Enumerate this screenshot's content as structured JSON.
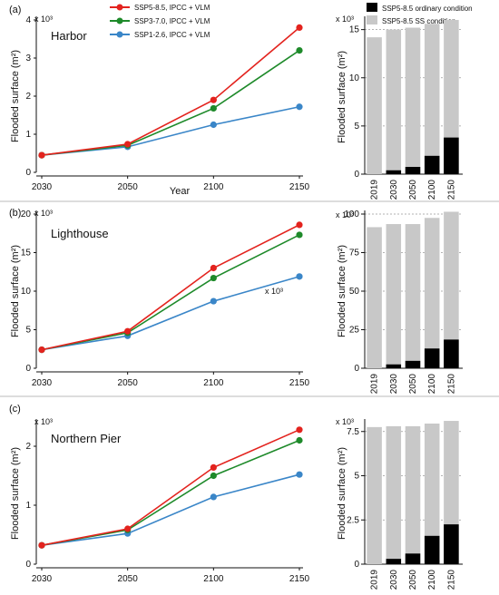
{
  "legend": {
    "lines": [
      {
        "label": "SSP5-8.5, IPCC + VLM",
        "color": "#e3231e"
      },
      {
        "label": "SSP3-7.0, IPCC + VLM",
        "color": "#1e8a2a"
      },
      {
        "label": "SSP1-2.6, IPCC + VLM",
        "color": "#3a86c8"
      }
    ],
    "bars": [
      {
        "label": "SSP5-8.5 ordinary condition",
        "color": "#000000"
      },
      {
        "label": "SSP5-8.5 SS condition",
        "color": "#c8c8c8"
      }
    ]
  },
  "chart_data": [
    {
      "type": "line",
      "panel": "(a)",
      "site": "Harbor",
      "multiplier": "x 10³",
      "xlabel": "Year",
      "ylabel": "Flooded surface (m²)",
      "categories": [
        "2030",
        "2050",
        "2100",
        "2150"
      ],
      "ylim": [
        0,
        4
      ],
      "yticks": [
        "0",
        "1",
        "2",
        "3",
        "4"
      ],
      "series": [
        {
          "name": "SSP5-8.5, IPCC + VLM",
          "values": [
            0.45,
            0.74,
            1.9,
            3.8
          ]
        },
        {
          "name": "SSP3-7.0, IPCC + VLM",
          "values": [
            0.45,
            0.71,
            1.68,
            3.2
          ]
        },
        {
          "name": "SSP1-2.6, IPCC + VLM",
          "values": [
            0.45,
            0.67,
            1.25,
            1.72
          ]
        }
      ]
    },
    {
      "type": "bar",
      "panel": "(a)",
      "multiplier": "x 10³",
      "ylabel": "Flooded surface (m²)",
      "categories": [
        "2019",
        "2030",
        "2050",
        "2100",
        "2150"
      ],
      "ylim": [
        0,
        16
      ],
      "yticks": [
        "0",
        "5",
        "10",
        "15"
      ],
      "series": [
        {
          "name": "SSP5-8.5 SS condition",
          "values": [
            14.2,
            15.0,
            15.2,
            15.6,
            16.0
          ]
        },
        {
          "name": "SSP5-8.5 ordinary condition",
          "values": [
            0,
            0.4,
            0.75,
            1.9,
            3.8
          ]
        }
      ]
    },
    {
      "type": "line",
      "panel": "(b)",
      "site": "Lighthouse",
      "multiplier": "x 10³",
      "xlabel": "",
      "ylabel": "Flooded surface (m²)",
      "categories": [
        "2030",
        "2050",
        "2100",
        "2150"
      ],
      "ylim": [
        0,
        20
      ],
      "yticks": [
        "0",
        "5",
        "10",
        "15",
        "20"
      ],
      "series": [
        {
          "name": "SSP5-8.5, IPCC + VLM",
          "values": [
            2.4,
            4.8,
            13.0,
            18.6
          ]
        },
        {
          "name": "SSP3-7.0, IPCC + VLM",
          "values": [
            2.4,
            4.6,
            11.7,
            17.3
          ]
        },
        {
          "name": "SSP1-2.6, IPCC + VLM",
          "values": [
            2.4,
            4.2,
            8.7,
            11.9
          ]
        }
      ]
    },
    {
      "type": "bar",
      "panel": "(b)",
      "multiplier": "x 10³",
      "ylabel": "Flooded surface (m²)",
      "categories": [
        "2019",
        "2030",
        "2050",
        "2100",
        "2150"
      ],
      "ylim": [
        0,
        100
      ],
      "yticks": [
        "0",
        "25",
        "50",
        "75",
        "100"
      ],
      "series": [
        {
          "name": "SSP5-8.5 SS condition",
          "values": [
            91.5,
            93.5,
            93.5,
            97.5,
            101.5
          ]
        },
        {
          "name": "SSP5-8.5 ordinary condition",
          "values": [
            0,
            2.5,
            4.8,
            12.8,
            18.6
          ]
        }
      ]
    },
    {
      "type": "line",
      "panel": "(c)",
      "site": "Northern Pier",
      "multiplier": "x 10³",
      "xlabel": "",
      "ylabel": "Flooded surface (m²)",
      "categories": [
        "2030",
        "2050",
        "2100",
        "2150"
      ],
      "ylim": [
        0,
        2.4
      ],
      "yticks": [
        "0",
        "1",
        "2"
      ],
      "series": [
        {
          "name": "SSP5-8.5, IPCC + VLM",
          "values": [
            0.32,
            0.6,
            1.64,
            2.28
          ]
        },
        {
          "name": "SSP3-7.0, IPCC + VLM",
          "values": [
            0.32,
            0.58,
            1.5,
            2.1
          ]
        },
        {
          "name": "SSP1-2.6, IPCC + VLM",
          "values": [
            0.32,
            0.52,
            1.14,
            1.52
          ]
        }
      ]
    },
    {
      "type": "bar",
      "panel": "(c)",
      "multiplier": "x 10³",
      "ylabel": "Flooded surface (m²)",
      "categories": [
        "2019",
        "2030",
        "2050",
        "2100",
        "2150"
      ],
      "ylim": [
        0,
        8
      ],
      "yticks": [
        "0",
        "2.5",
        "5",
        "7.5"
      ],
      "series": [
        {
          "name": "SSP5-8.5 SS condition",
          "values": [
            7.75,
            7.8,
            7.8,
            7.95,
            8.1
          ]
        },
        {
          "name": "SSP5-8.5 ordinary condition",
          "values": [
            0,
            0.3,
            0.6,
            1.6,
            2.25
          ]
        }
      ]
    }
  ],
  "annotations": {
    "panel_b_inline": "x 10³"
  }
}
